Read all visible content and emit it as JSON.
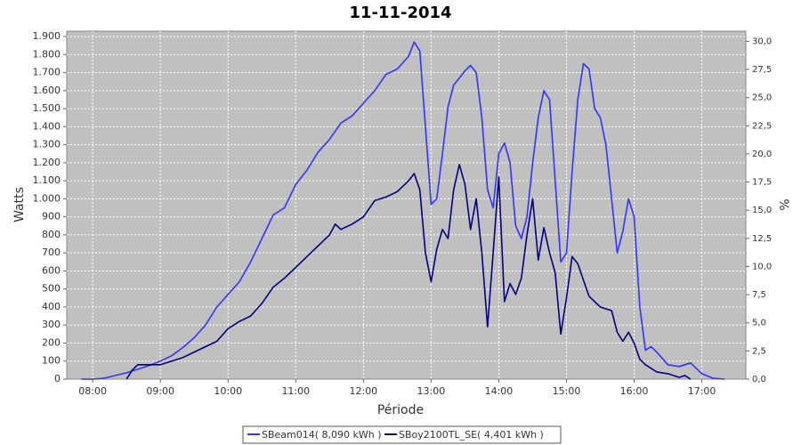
{
  "chart_data": {
    "type": "line",
    "title": "11-11-2014",
    "x_label": "Période",
    "y_label": "Watts",
    "y2_label": "%",
    "xlim": [
      "07:37",
      "17:39"
    ],
    "xticks": [
      "08:00",
      "09:00",
      "10:00",
      "11:00",
      "12:00",
      "13:00",
      "14:00",
      "15:00",
      "16:00",
      "17:00"
    ],
    "ylim": [
      0,
      1930
    ],
    "yticks": [
      0,
      100,
      200,
      300,
      400,
      500,
      600,
      700,
      800,
      900,
      {
        "value": 1000,
        "label": "1.000"
      },
      {
        "value": 1100,
        "label": "1.100"
      },
      {
        "value": 1200,
        "label": "1.200"
      },
      {
        "value": 1300,
        "label": "1.300"
      },
      {
        "value": 1400,
        "label": "1.400"
      },
      {
        "value": 1500,
        "label": "1.500"
      },
      {
        "value": 1600,
        "label": "1.600"
      },
      {
        "value": 1700,
        "label": "1.700"
      },
      {
        "value": 1800,
        "label": "1.800"
      },
      {
        "value": 1900,
        "label": "1.900"
      }
    ],
    "y2lim": [
      0,
      30.9
    ],
    "y2ticks": [
      {
        "value": 0,
        "label": "0,0"
      },
      {
        "value": 2.5,
        "label": "2,5"
      },
      {
        "value": 5,
        "label": "5,0"
      },
      {
        "value": 7.5,
        "label": "7,5"
      },
      {
        "value": 10,
        "label": "10,0"
      },
      {
        "value": 12.5,
        "label": "12,5"
      },
      {
        "value": 15,
        "label": "15,0"
      },
      {
        "value": 17.5,
        "label": "17,5"
      },
      {
        "value": 20,
        "label": "20,0"
      },
      {
        "value": 22.5,
        "label": "22,5"
      },
      {
        "value": 25,
        "label": "25,0"
      },
      {
        "value": 27.5,
        "label": "27,5"
      },
      {
        "value": 30,
        "label": "30,0"
      }
    ],
    "grid": true,
    "legend": "bottom",
    "series": [
      {
        "name": "SBeam014( 8,090 kWh )",
        "color": "#3333ff",
        "x": [
          "07:50",
          "08:00",
          "08:10",
          "08:20",
          "08:30",
          "08:40",
          "08:50",
          "09:00",
          "09:10",
          "09:20",
          "09:30",
          "09:40",
          "09:50",
          "10:00",
          "10:10",
          "10:20",
          "10:30",
          "10:40",
          "10:50",
          "11:00",
          "11:10",
          "11:20",
          "11:30",
          "11:40",
          "11:50",
          "12:00",
          "12:10",
          "12:20",
          "12:30",
          "12:40",
          "12:45",
          "12:50",
          "12:55",
          "13:00",
          "13:05",
          "13:10",
          "13:15",
          "13:20",
          "13:30",
          "13:35",
          "13:40",
          "13:45",
          "13:50",
          "13:55",
          "14:00",
          "14:05",
          "14:10",
          "14:15",
          "14:20",
          "14:25",
          "14:30",
          "14:35",
          "14:40",
          "14:45",
          "14:50",
          "14:55",
          "15:00",
          "15:05",
          "15:10",
          "15:15",
          "15:20",
          "15:25",
          "15:30",
          "15:35",
          "15:40",
          "15:45",
          "15:50",
          "15:55",
          "16:00",
          "16:05",
          "16:10",
          "16:15",
          "16:20",
          "16:30",
          "16:40",
          "16:50",
          "17:00",
          "17:10",
          "17:20"
        ],
        "values": [
          0,
          0,
          5,
          20,
          35,
          55,
          75,
          100,
          130,
          175,
          230,
          300,
          400,
          470,
          540,
          650,
          780,
          910,
          950,
          1080,
          1160,
          1260,
          1330,
          1420,
          1460,
          1530,
          1600,
          1690,
          1720,
          1790,
          1870,
          1820,
          1400,
          970,
          1000,
          1250,
          1510,
          1630,
          1710,
          1740,
          1700,
          1450,
          1050,
          950,
          1250,
          1310,
          1200,
          850,
          780,
          900,
          1200,
          1450,
          1600,
          1550,
          1100,
          650,
          700,
          1150,
          1550,
          1750,
          1720,
          1500,
          1450,
          1300,
          1000,
          700,
          820,
          1000,
          900,
          400,
          160,
          180,
          150,
          80,
          70,
          90,
          30,
          5,
          0
        ]
      },
      {
        "name": "SBoy2100TL_SE( 4,401 kWh )",
        "color": "#000080",
        "x": [
          "08:30",
          "08:35",
          "08:40",
          "08:50",
          "09:00",
          "09:10",
          "09:20",
          "09:30",
          "09:40",
          "09:50",
          "10:00",
          "10:10",
          "10:20",
          "10:30",
          "10:40",
          "10:50",
          "11:00",
          "11:10",
          "11:20",
          "11:30",
          "11:35",
          "11:40",
          "11:50",
          "12:00",
          "12:10",
          "12:20",
          "12:30",
          "12:40",
          "12:45",
          "12:50",
          "12:55",
          "13:00",
          "13:05",
          "13:10",
          "13:15",
          "13:20",
          "13:25",
          "13:30",
          "13:35",
          "13:40",
          "13:45",
          "13:50",
          "13:55",
          "14:00",
          "14:05",
          "14:10",
          "14:15",
          "14:20",
          "14:25",
          "14:30",
          "14:35",
          "14:40",
          "14:45",
          "14:50",
          "14:55",
          "15:00",
          "15:05",
          "15:10",
          "15:15",
          "15:20",
          "15:30",
          "15:40",
          "15:45",
          "15:50",
          "15:55",
          "16:00",
          "16:05",
          "16:10",
          "16:20",
          "16:30",
          "16:40",
          "16:45",
          "16:50"
        ],
        "values": [
          0,
          50,
          80,
          80,
          80,
          100,
          120,
          150,
          180,
          210,
          280,
          320,
          350,
          420,
          510,
          560,
          620,
          680,
          740,
          800,
          860,
          830,
          860,
          900,
          990,
          1010,
          1040,
          1100,
          1140,
          1050,
          700,
          540,
          720,
          830,
          780,
          1050,
          1190,
          1080,
          830,
          1000,
          700,
          290,
          700,
          1120,
          430,
          530,
          470,
          560,
          800,
          1000,
          660,
          840,
          700,
          590,
          250,
          450,
          680,
          640,
          550,
          460,
          400,
          380,
          260,
          210,
          260,
          200,
          110,
          80,
          40,
          30,
          10,
          20,
          0
        ]
      }
    ]
  }
}
